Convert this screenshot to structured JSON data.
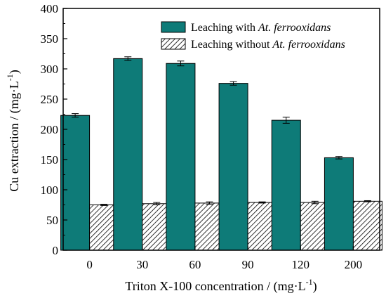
{
  "chart_data": {
    "type": "bar",
    "categories": [
      "0",
      "30",
      "60",
      "90",
      "120",
      "200"
    ],
    "series": [
      {
        "name": "Leaching with At. ferrooxidans",
        "name_prefix": "Leaching with ",
        "name_italic": "At. ferrooxidans",
        "fill": "#0e7b78",
        "pattern": "solid",
        "values": [
          223,
          317,
          309,
          276,
          215,
          153
        ],
        "errors": [
          3,
          3,
          4,
          3,
          5,
          2
        ]
      },
      {
        "name": "Leaching without At. ferrooxidans",
        "name_prefix": "Leaching without ",
        "name_italic": "At. ferrooxidans",
        "fill": "#ffffff",
        "pattern": "diagonal-hatch",
        "values": [
          75,
          77,
          78,
          79,
          79,
          81
        ],
        "errors": [
          1,
          2,
          2,
          1,
          2,
          1
        ]
      }
    ],
    "ylim": [
      0,
      400
    ],
    "yticks": [
      0,
      50,
      100,
      150,
      200,
      250,
      300,
      350,
      400
    ],
    "xlabel_main": "Triton X-100 concentration / (mg·L",
    "xlabel_sup": "-1",
    "xlabel_tail": ")",
    "ylabel_main": "Cu extraction / (mg·L",
    "ylabel_sup": "-1",
    "ylabel_tail": ")",
    "legend_position": "top-right",
    "grid": false
  }
}
